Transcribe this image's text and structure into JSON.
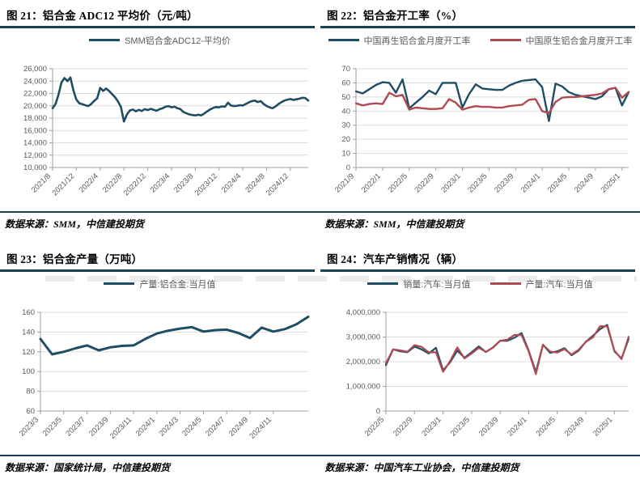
{
  "colors": {
    "accent_blue": "#1F4E63",
    "accent_red": "#B04A52",
    "rule": "#1C3F54",
    "grid": "#DCDCDC",
    "axis": "#9E9E9E",
    "tick_text": "#595959"
  },
  "chart_data": [
    {
      "id": "fig21",
      "type": "line",
      "title": "图 21：铝合金 ADC12 平均价（元/吨）",
      "source": "数据来源：SMM，中信建投期货",
      "legend_position": "top",
      "grid": true,
      "ylim": [
        10000,
        26000
      ],
      "yticks": [
        {
          "v": 26000,
          "label": "26,000"
        },
        {
          "v": 24000,
          "label": "24,000"
        },
        {
          "v": 22000,
          "label": "22,000"
        },
        {
          "v": 20000,
          "label": "20,000"
        },
        {
          "v": 18000,
          "label": "18,000"
        },
        {
          "v": 16000,
          "label": "16,000"
        },
        {
          "v": 14000,
          "label": "14,000"
        },
        {
          "v": 12000,
          "label": "12,000"
        },
        {
          "v": 10000,
          "label": "10,000"
        }
      ],
      "xticks": [
        {
          "pos": 0.0,
          "label": "2021/8"
        },
        {
          "pos": 0.093,
          "label": "2021/12"
        },
        {
          "pos": 0.186,
          "label": "2022/4"
        },
        {
          "pos": 0.279,
          "label": "2022/8"
        },
        {
          "pos": 0.372,
          "label": "2022/12"
        },
        {
          "pos": 0.465,
          "label": "2023/4"
        },
        {
          "pos": 0.558,
          "label": "2023/8"
        },
        {
          "pos": 0.651,
          "label": "2023/12"
        },
        {
          "pos": 0.744,
          "label": "2024/4"
        },
        {
          "pos": 0.837,
          "label": "2024/8"
        },
        {
          "pos": 0.93,
          "label": "2024/12"
        }
      ],
      "series": [
        {
          "name": "SMM铝合金ADC12-平均价",
          "color": "#1F4E63",
          "width": 2.6,
          "values": [
            19600,
            20300,
            21800,
            23800,
            24500,
            24000,
            24600,
            22500,
            21000,
            20400,
            20250,
            20100,
            19950,
            20300,
            20800,
            21200,
            22900,
            22400,
            22800,
            22400,
            21900,
            21400,
            20700,
            19800,
            17450,
            18600,
            19250,
            19400,
            19100,
            19350,
            19150,
            19450,
            19300,
            19500,
            19350,
            19200,
            19450,
            19600,
            19850,
            19950,
            19750,
            19850,
            19600,
            19450,
            19000,
            18800,
            18600,
            18500,
            18450,
            18550,
            18450,
            18750,
            19100,
            19400,
            19650,
            19800,
            19750,
            19900,
            19850,
            20500,
            20050,
            19950,
            20000,
            20100,
            20050,
            20300,
            20550,
            20750,
            20850,
            20600,
            20750,
            20300,
            19950,
            19750,
            19600,
            19900,
            20300,
            20600,
            20850,
            21000,
            21100,
            20950,
            21050,
            21150,
            21300,
            21250,
            20850
          ]
        }
      ]
    },
    {
      "id": "fig22",
      "type": "line",
      "title": "图 22：铝合金开工率（%）",
      "source": "数据来源：SMM，中信建投期货",
      "legend_position": "top",
      "grid": true,
      "ylim": [
        0,
        70
      ],
      "yticks": [
        {
          "v": 70,
          "label": "70"
        },
        {
          "v": 60,
          "label": "60"
        },
        {
          "v": 50,
          "label": "50"
        },
        {
          "v": 40,
          "label": "40"
        },
        {
          "v": 30,
          "label": "30"
        },
        {
          "v": 20,
          "label": "20"
        },
        {
          "v": 10,
          "label": "10"
        },
        {
          "v": 0,
          "label": "0"
        }
      ],
      "xticks": [
        {
          "pos": 0.0,
          "label": "2021/9"
        },
        {
          "pos": 0.0976,
          "label": "2022/1"
        },
        {
          "pos": 0.1951,
          "label": "2022/5"
        },
        {
          "pos": 0.2927,
          "label": "2022/9"
        },
        {
          "pos": 0.3902,
          "label": "2023/1"
        },
        {
          "pos": 0.4878,
          "label": "2023/5"
        },
        {
          "pos": 0.5854,
          "label": "2023/9"
        },
        {
          "pos": 0.6829,
          "label": "2024/1"
        },
        {
          "pos": 0.7805,
          "label": "2024/5"
        },
        {
          "pos": 0.878,
          "label": "2024/9"
        },
        {
          "pos": 0.9756,
          "label": "2025/1"
        }
      ],
      "series": [
        {
          "name": "中国再生铝合金月度开工率",
          "color": "#1F4E63",
          "width": 2.4,
          "values": [
            54,
            52.5,
            55.5,
            58.5,
            60.5,
            60,
            53,
            62.5,
            42,
            46,
            50,
            54.5,
            52,
            60,
            60,
            60,
            42.5,
            52,
            59,
            56,
            55.5,
            55,
            55,
            58,
            60,
            61.5,
            62,
            62.5,
            57,
            33,
            59.5,
            57.5,
            53.5,
            51.5,
            50.5,
            49.5,
            48.5,
            50.5,
            55.5,
            56.5,
            44,
            53.5
          ]
        },
        {
          "name": "中国原生铝合金月度开工率",
          "color": "#B04A52",
          "width": 2.4,
          "values": [
            45.5,
            44,
            45,
            45.5,
            45,
            53,
            50.5,
            51.5,
            41,
            42.5,
            42,
            41.5,
            41.5,
            42,
            48.5,
            46,
            41,
            42.5,
            43.5,
            43,
            43,
            42.5,
            42.5,
            43.5,
            44,
            44.5,
            48,
            48.5,
            40,
            38.5,
            46.5,
            49.5,
            50,
            50,
            50.5,
            51,
            51.5,
            52.5,
            55.5,
            56.5,
            49.5,
            53.5
          ]
        }
      ]
    },
    {
      "id": "fig23",
      "type": "line",
      "title": "图 23：铝合金产量（万吨）",
      "source": "数据来源：国家统计局，中信建投期货",
      "legend_position": "top",
      "grid": true,
      "ylim": [
        60,
        160
      ],
      "yticks": [
        {
          "v": 160,
          "label": "160"
        },
        {
          "v": 140,
          "label": "140"
        },
        {
          "v": 120,
          "label": "120"
        },
        {
          "v": 100,
          "label": "100"
        },
        {
          "v": 80,
          "label": "80"
        },
        {
          "v": 60,
          "label": "60"
        }
      ],
      "xticks": [
        {
          "pos": 0.0,
          "label": "2023/3"
        },
        {
          "pos": 0.087,
          "label": "2023/5"
        },
        {
          "pos": 0.1739,
          "label": "2023/7"
        },
        {
          "pos": 0.2609,
          "label": "2023/9"
        },
        {
          "pos": 0.3478,
          "label": "2023/11"
        },
        {
          "pos": 0.4348,
          "label": "2024/1"
        },
        {
          "pos": 0.5217,
          "label": "2024/3"
        },
        {
          "pos": 0.6087,
          "label": "2024/5"
        },
        {
          "pos": 0.6957,
          "label": "2024/7"
        },
        {
          "pos": 0.7826,
          "label": "2024/9"
        },
        {
          "pos": 0.8696,
          "label": "2024/11"
        }
      ],
      "series": [
        {
          "name": "产量:铝合金:当月值",
          "color": "#1F4E63",
          "width": 3,
          "values": [
            133,
            117.5,
            120,
            123.5,
            126.5,
            121.5,
            124.5,
            126,
            126.5,
            133,
            138.5,
            141.5,
            143.5,
            145,
            140.5,
            142,
            142.5,
            139,
            134,
            144.5,
            140.5,
            143,
            148,
            155.5
          ]
        }
      ]
    },
    {
      "id": "fig24",
      "type": "line",
      "title": "图 24：汽车产销情况（辆）",
      "source": "数据来源：中国汽车工业协会，中信建投期货",
      "legend_position": "top",
      "grid": true,
      "ylim": [
        0,
        4000000
      ],
      "yticks": [
        {
          "v": 4000000,
          "label": "4,000,000"
        },
        {
          "v": 3000000,
          "label": "3,000,000"
        },
        {
          "v": 2000000,
          "label": "2,000,000"
        },
        {
          "v": 1000000,
          "label": "1,000,000"
        },
        {
          "v": 0,
          "label": "0"
        }
      ],
      "xticks": [
        {
          "pos": 0.0,
          "label": "2022/5"
        },
        {
          "pos": 0.1176,
          "label": "2022/9"
        },
        {
          "pos": 0.2353,
          "label": "2023/1"
        },
        {
          "pos": 0.3529,
          "label": "2023/5"
        },
        {
          "pos": 0.4706,
          "label": "2023/9"
        },
        {
          "pos": 0.5882,
          "label": "2024/1"
        },
        {
          "pos": 0.7059,
          "label": "2024/5"
        },
        {
          "pos": 0.8235,
          "label": "2024/9"
        },
        {
          "pos": 0.9412,
          "label": "2025/1"
        }
      ],
      "series": [
        {
          "name": "销量:汽车:当月值",
          "color": "#1F4E63",
          "width": 2.2,
          "values": [
            1860000,
            2500000,
            2420000,
            2380000,
            2610000,
            2500000,
            2330000,
            2560000,
            1650000,
            1980000,
            2450000,
            2160000,
            2380000,
            2620000,
            2390000,
            2580000,
            2850000,
            2850000,
            2970000,
            3160000,
            2440000,
            1580000,
            2690000,
            2360000,
            2420000,
            2550000,
            2260000,
            2450000,
            2810000,
            3050000,
            3320000,
            3490000,
            2420000,
            2130000,
            2920000
          ]
        },
        {
          "name": "产量:汽车:当月值",
          "color": "#B04A52",
          "width": 2.2,
          "values": [
            1930000,
            2500000,
            2460000,
            2400000,
            2670000,
            2600000,
            2380000,
            2380000,
            1590000,
            2030000,
            2580000,
            2130000,
            2330000,
            2560000,
            2400000,
            2570000,
            2850000,
            2890000,
            3090000,
            3080000,
            2410000,
            1500000,
            2690000,
            2410000,
            2370000,
            2510000,
            2290000,
            2490000,
            2800000,
            2990000,
            3440000,
            3430000,
            2450000,
            2100000,
            3010000
          ]
        }
      ]
    }
  ]
}
